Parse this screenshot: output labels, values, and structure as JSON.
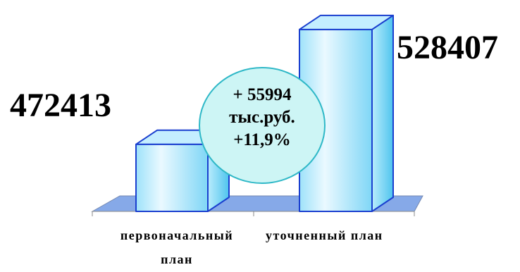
{
  "chart_data": {
    "type": "bar",
    "categories": [
      "первоначальный план",
      "уточненный план"
    ],
    "values": [
      472413,
      528407
    ],
    "value_labels": [
      "472413",
      "528407"
    ],
    "title": "",
    "xlabel": "",
    "ylabel": "",
    "grid": false,
    "legend": "none",
    "annotation": {
      "lines": [
        "+ 55994",
        "тыс.руб.",
        "+11,9%"
      ],
      "fill": "#cdf5f5",
      "stroke": "#2fb8c7"
    },
    "colors": {
      "bar_front_light": "#e6f8ff",
      "bar_front_mid": "#9ee2fa",
      "bar_side": "#5ccbf2",
      "bar_top": "#c4eeff",
      "bar_outline": "#1a3fcf",
      "floor": "#86a9e8"
    }
  },
  "labels": {
    "cat1_line1": "первоначальный",
    "cat1_line2": "план",
    "cat2": "уточненный план"
  }
}
